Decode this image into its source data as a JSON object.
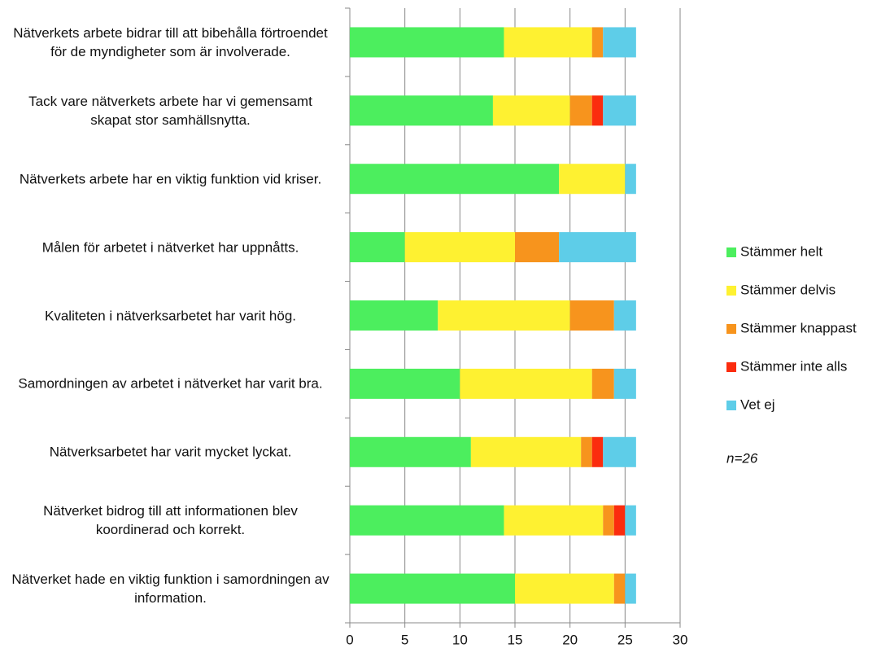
{
  "chart_data": {
    "type": "stacked_barh",
    "categories": [
      "Nätverkets arbete bidrar till att bibehålla förtroendet för de myndigheter som är involverade.",
      "Tack vare nätverkets arbete har vi gemensamt skapat stor samhällsnytta.",
      "Nätverkets arbete har en viktig funktion vid kriser.",
      "Målen för arbetet i nätverket har uppnåtts.",
      "Kvaliteten i nätverksarbetet har varit hög.",
      "Samordningen av arbetet i nätverket har varit bra.",
      "Nätverksarbetet har varit mycket lyckat.",
      "Nätverket bidrog till att informationen blev koordinerad och korrekt.",
      "Nätverket hade en viktig funktion i samordningen av information."
    ],
    "series": [
      {
        "name": "Stämmer helt",
        "color": "#4cee5e",
        "values": [
          14,
          13,
          19,
          5,
          8,
          10,
          11,
          14,
          15
        ]
      },
      {
        "name": "Stämmer delvis",
        "color": "#fef131",
        "values": [
          8,
          7,
          6,
          10,
          12,
          12,
          10,
          9,
          9
        ]
      },
      {
        "name": "Stämmer knappast",
        "color": "#f7941d",
        "values": [
          1,
          2,
          0,
          4,
          4,
          2,
          1,
          1,
          1
        ]
      },
      {
        "name": "Stämmer inte alls",
        "color": "#fb2c0e",
        "values": [
          0,
          1,
          0,
          0,
          0,
          0,
          1,
          1,
          0
        ]
      },
      {
        "name": "Vet ej",
        "color": "#5ecde8",
        "values": [
          3,
          3,
          1,
          7,
          2,
          2,
          3,
          1,
          1
        ]
      }
    ],
    "xlim": [
      0,
      30
    ],
    "xticks": [
      0,
      5,
      10,
      15,
      20,
      25,
      30
    ],
    "grid": true,
    "legend": "right",
    "annotation": "n=26"
  }
}
